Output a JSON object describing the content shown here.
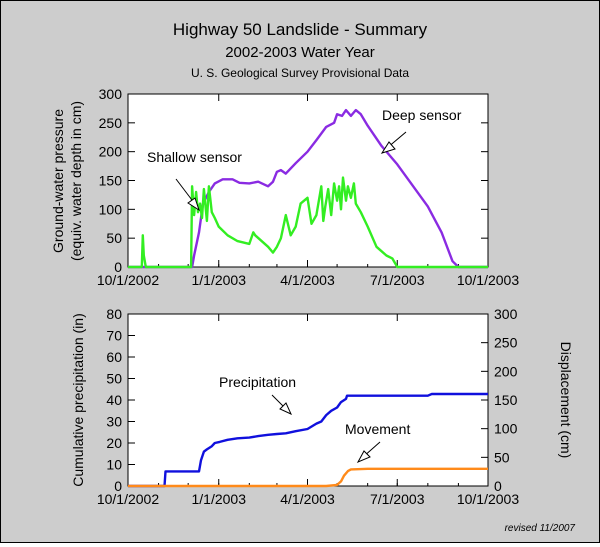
{
  "title": "Highway 50 Landslide - Summary",
  "subtitle": "2002-2003 Water Year",
  "source": "U. S. Geological Survey Provisional Data",
  "revised": "revised 11/2007",
  "colors": {
    "deep": "#8a2be2",
    "shallow": "#33ee22",
    "precipitation": "#1010dd",
    "movement": "#ff8a1a",
    "background": "#cdcdcd"
  },
  "chart_data": [
    {
      "type": "line",
      "x_ticks": [
        "10/1/2002",
        "1/1/2003",
        "4/1/2003",
        "7/1/2003",
        "10/1/2003"
      ],
      "xlim": [
        "2002-10-01",
        "2003-10-01"
      ],
      "ylabel": "Ground-water pressure (equiv. water depth in cm)",
      "ylim": [
        0,
        300
      ],
      "y_ticks": [
        0,
        50,
        100,
        150,
        200,
        250,
        300
      ],
      "annotations": [
        "Shallow sensor",
        "Deep sensor"
      ],
      "series": [
        {
          "name": "Deep sensor",
          "x": [
            "2002-10-01",
            "2002-12-05",
            "2002-12-07",
            "2002-12-12",
            "2002-12-16",
            "2002-12-22",
            "2002-12-28",
            "2003-01-05",
            "2003-01-15",
            "2003-01-22",
            "2003-02-01",
            "2003-02-10",
            "2003-02-20",
            "2003-02-25",
            "2003-03-01",
            "2003-03-05",
            "2003-03-10",
            "2003-03-20",
            "2003-04-01",
            "2003-04-10",
            "2003-04-20",
            "2003-04-28",
            "2003-05-01",
            "2003-05-06",
            "2003-05-10",
            "2003-05-15",
            "2003-05-20",
            "2003-05-25",
            "2003-06-01",
            "2003-06-15",
            "2003-07-01",
            "2003-07-15",
            "2003-08-01",
            "2003-08-15",
            "2003-08-26",
            "2003-09-01",
            "2003-10-01"
          ],
          "values": [
            0,
            0,
            20,
            60,
            110,
            130,
            145,
            152,
            152,
            146,
            145,
            148,
            140,
            148,
            165,
            168,
            162,
            180,
            200,
            220,
            243,
            250,
            265,
            262,
            272,
            262,
            272,
            265,
            245,
            210,
            178,
            145,
            105,
            60,
            10,
            0,
            0
          ]
        },
        {
          "name": "Shallow sensor",
          "x": [
            "2002-10-01",
            "2002-10-15",
            "2002-10-16",
            "2002-10-17",
            "2002-10-19",
            "2002-12-04",
            "2002-12-05",
            "2002-12-07",
            "2002-12-09",
            "2002-12-11",
            "2002-12-13",
            "2002-12-15",
            "2002-12-17",
            "2002-12-20",
            "2002-12-22",
            "2002-12-25",
            "2002-12-28",
            "2003-01-01",
            "2003-01-10",
            "2003-01-20",
            "2003-02-01",
            "2003-02-05",
            "2003-02-07",
            "2003-02-20",
            "2003-02-25",
            "2003-03-01",
            "2003-03-05",
            "2003-03-10",
            "2003-03-15",
            "2003-03-20",
            "2003-03-25",
            "2003-04-01",
            "2003-04-05",
            "2003-04-10",
            "2003-04-15",
            "2003-04-17",
            "2003-04-19",
            "2003-04-22",
            "2003-04-25",
            "2003-04-28",
            "2003-05-01",
            "2003-05-03",
            "2003-05-05",
            "2003-05-07",
            "2003-05-10",
            "2003-05-12",
            "2003-05-15",
            "2003-05-18",
            "2003-05-20",
            "2003-05-25",
            "2003-06-01",
            "2003-06-10",
            "2003-06-20",
            "2003-06-26",
            "2003-07-01",
            "2003-07-10",
            "2003-10-01"
          ],
          "values": [
            0,
            0,
            55,
            20,
            0,
            0,
            140,
            90,
            130,
            95,
            110,
            85,
            135,
            80,
            140,
            95,
            85,
            70,
            55,
            45,
            40,
            60,
            55,
            35,
            25,
            35,
            50,
            90,
            55,
            70,
            110,
            120,
            75,
            90,
            140,
            80,
            105,
            135,
            90,
            145,
            115,
            140,
            100,
            155,
            115,
            140,
            120,
            145,
            110,
            95,
            70,
            35,
            20,
            15,
            0,
            0,
            0
          ]
        }
      ]
    },
    {
      "type": "line",
      "x_ticks": [
        "10/1/2002",
        "1/1/2003",
        "4/1/2003",
        "7/1/2003",
        "10/1/2003"
      ],
      "xlim": [
        "2002-10-01",
        "2003-10-01"
      ],
      "ylabel": "Cumulative precipitation (in)",
      "ylim": [
        0,
        80
      ],
      "y_ticks": [
        0,
        10,
        20,
        30,
        40,
        50,
        60,
        70,
        80
      ],
      "y2label": "Displacement (cm)",
      "y2lim": [
        0,
        300
      ],
      "y2_ticks": [
        0,
        50,
        100,
        150,
        200,
        250,
        300
      ],
      "annotations": [
        "Precipitation",
        "Movement"
      ],
      "series": [
        {
          "name": "Precipitation",
          "axis": "left",
          "x": [
            "2002-10-01",
            "2002-11-07",
            "2002-11-08",
            "2002-12-12",
            "2002-12-14",
            "2002-12-17",
            "2002-12-20",
            "2002-12-25",
            "2002-12-28",
            "2003-01-02",
            "2003-01-10",
            "2003-01-20",
            "2003-02-01",
            "2003-02-10",
            "2003-02-20",
            "2003-03-01",
            "2003-03-10",
            "2003-03-20",
            "2003-04-01",
            "2003-04-10",
            "2003-04-15",
            "2003-04-20",
            "2003-04-25",
            "2003-05-01",
            "2003-05-05",
            "2003-05-10",
            "2003-05-11",
            "2003-06-01",
            "2003-08-01",
            "2003-08-05",
            "2003-10-01"
          ],
          "values": [
            0,
            0,
            6.8,
            6.8,
            12,
            16,
            17,
            18.5,
            20,
            20.5,
            21.5,
            22.2,
            22.5,
            23.2,
            23.8,
            24.2,
            24.5,
            25.5,
            26.5,
            29,
            30,
            33,
            35,
            36.5,
            39,
            40.5,
            42,
            42,
            42,
            42.8,
            42.8
          ]
        },
        {
          "name": "Movement",
          "axis": "right",
          "x": [
            "2002-10-01",
            "2003-04-20",
            "2003-05-01",
            "2003-05-05",
            "2003-05-08",
            "2003-05-12",
            "2003-05-15",
            "2003-06-01",
            "2003-10-01"
          ],
          "values": [
            0,
            0,
            2,
            8,
            18,
            26,
            29,
            30,
            30
          ]
        }
      ]
    }
  ]
}
